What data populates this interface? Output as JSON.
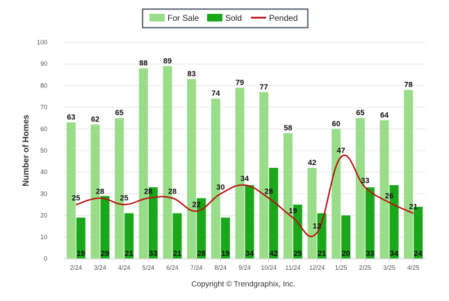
{
  "chart_data": {
    "type": "bar",
    "ylabel": "Number of Homes",
    "xlabel": "",
    "ylim": [
      0,
      100
    ],
    "yticks": [
      0,
      10,
      20,
      30,
      40,
      50,
      60,
      70,
      80,
      90,
      100
    ],
    "grid": true,
    "legend_position": "top-center",
    "categories": [
      "2/24",
      "3/24",
      "4/24",
      "5/24",
      "6/24",
      "7/24",
      "8/24",
      "9/24",
      "10/24",
      "11/24",
      "12/24",
      "1/25",
      "2/25",
      "3/25",
      "4/25"
    ],
    "series": [
      {
        "name": "For Sale",
        "kind": "bar",
        "color": "#99dd88",
        "values": [
          63,
          62,
          65,
          88,
          89,
          83,
          74,
          79,
          77,
          58,
          42,
          60,
          65,
          64,
          78
        ]
      },
      {
        "name": "Sold",
        "kind": "bar",
        "color": "#1aa81a",
        "values": [
          19,
          29,
          21,
          33,
          21,
          28,
          19,
          34,
          42,
          25,
          21,
          20,
          33,
          34,
          24
        ]
      },
      {
        "name": "Pended",
        "kind": "line",
        "color": "#bb1111",
        "values": [
          25,
          28,
          25,
          28,
          28,
          22,
          30,
          34,
          28,
          19,
          12,
          47,
          33,
          26,
          21
        ]
      }
    ],
    "credit": "Copyright © Trendgraphix, Inc."
  }
}
